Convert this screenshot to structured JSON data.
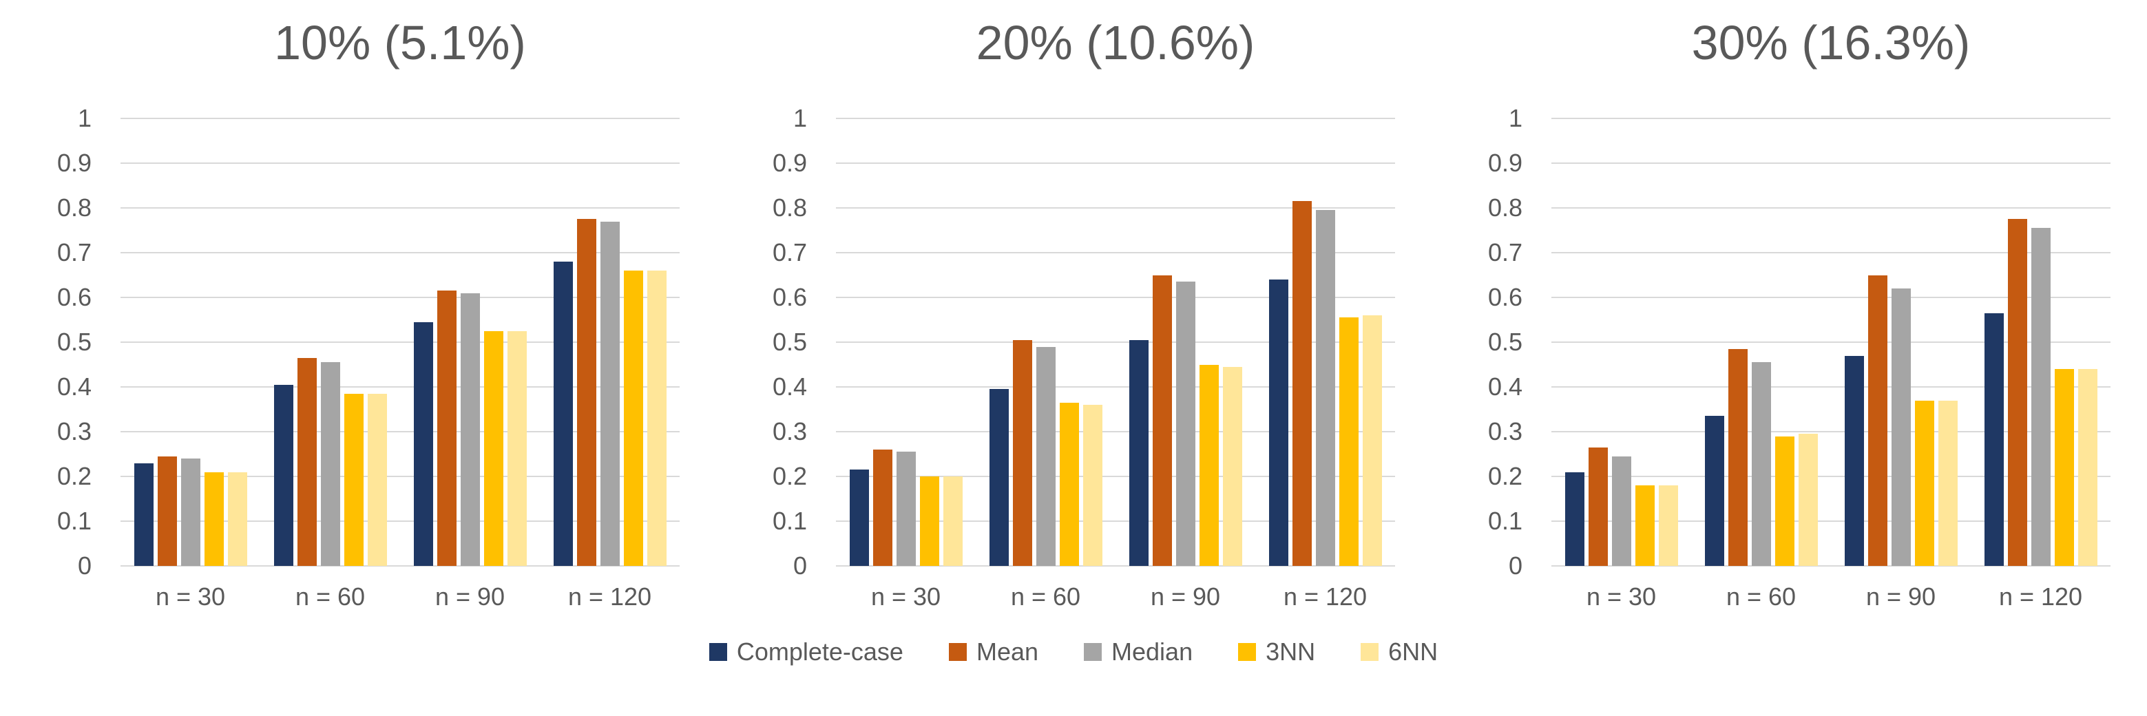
{
  "figure": {
    "background": "#FFFFFF"
  },
  "styles": {
    "grid_color": "#D9D9D9",
    "title_text_color": "#595959",
    "axis_text_color": "#595959"
  },
  "legend": {
    "position": "bottom-center",
    "items": [
      {
        "label": "Complete-case",
        "color": "#1F3864"
      },
      {
        "label": "Mean",
        "color": "#C55A11"
      },
      {
        "label": "Median",
        "color": "#A5A5A5"
      },
      {
        "label": "3NN",
        "color": "#FFC000"
      },
      {
        "label": "6NN",
        "color": "#FFE699"
      }
    ]
  },
  "chart_data": [
    {
      "type": "bar",
      "title": "10% (5.1%)",
      "categories": [
        "n = 30",
        "n = 60",
        "n = 90",
        "n = 120"
      ],
      "ylim": [
        0,
        1
      ],
      "y_ticks": [
        0,
        0.1,
        0.2,
        0.3,
        0.4,
        0.5,
        0.6,
        0.7,
        0.8,
        0.9,
        1
      ],
      "y_tick_labels": [
        "0",
        "0.1",
        "0.2",
        "0.3",
        "0.4",
        "0.5",
        "0.6",
        "0.7",
        "0.8",
        "0.9",
        "1"
      ],
      "grid": true,
      "legend_position": "shared-bottom",
      "series": [
        {
          "name": "Complete-case",
          "color": "#1F3864",
          "values": [
            0.23,
            0.405,
            0.545,
            0.68
          ]
        },
        {
          "name": "Mean",
          "color": "#C55A11",
          "values": [
            0.245,
            0.465,
            0.615,
            0.775
          ]
        },
        {
          "name": "Median",
          "color": "#A5A5A5",
          "values": [
            0.24,
            0.455,
            0.61,
            0.77
          ]
        },
        {
          "name": "3NN",
          "color": "#FFC000",
          "values": [
            0.21,
            0.385,
            0.525,
            0.66
          ]
        },
        {
          "name": "6NN",
          "color": "#FFE699",
          "values": [
            0.21,
            0.385,
            0.525,
            0.66
          ]
        }
      ]
    },
    {
      "type": "bar",
      "title": "20% (10.6%)",
      "categories": [
        "n = 30",
        "n = 60",
        "n = 90",
        "n = 120"
      ],
      "ylim": [
        0,
        1
      ],
      "y_ticks": [
        0,
        0.1,
        0.2,
        0.3,
        0.4,
        0.5,
        0.6,
        0.7,
        0.8,
        0.9,
        1
      ],
      "y_tick_labels": [
        "0",
        "0.1",
        "0.2",
        "0.3",
        "0.4",
        "0.5",
        "0.6",
        "0.7",
        "0.8",
        "0.9",
        "1"
      ],
      "grid": true,
      "legend_position": "shared-bottom",
      "series": [
        {
          "name": "Complete-case",
          "color": "#1F3864",
          "values": [
            0.215,
            0.395,
            0.505,
            0.64
          ]
        },
        {
          "name": "Mean",
          "color": "#C55A11",
          "values": [
            0.26,
            0.505,
            0.65,
            0.815
          ]
        },
        {
          "name": "Median",
          "color": "#A5A5A5",
          "values": [
            0.255,
            0.49,
            0.635,
            0.795
          ]
        },
        {
          "name": "3NN",
          "color": "#FFC000",
          "values": [
            0.2,
            0.365,
            0.45,
            0.555
          ]
        },
        {
          "name": "6NN",
          "color": "#FFE699",
          "values": [
            0.2,
            0.36,
            0.445,
            0.56
          ]
        }
      ]
    },
    {
      "type": "bar",
      "title": "30% (16.3%)",
      "categories": [
        "n = 30",
        "n = 60",
        "n = 90",
        "n = 120"
      ],
      "ylim": [
        0,
        1
      ],
      "y_ticks": [
        0,
        0.1,
        0.2,
        0.3,
        0.4,
        0.5,
        0.6,
        0.7,
        0.8,
        0.9,
        1
      ],
      "y_tick_labels": [
        "0",
        "0.1",
        "0.2",
        "0.3",
        "0.4",
        "0.5",
        "0.6",
        "0.7",
        "0.8",
        "0.9",
        "1"
      ],
      "grid": true,
      "legend_position": "shared-bottom",
      "series": [
        {
          "name": "Complete-case",
          "color": "#1F3864",
          "values": [
            0.21,
            0.335,
            0.47,
            0.565
          ]
        },
        {
          "name": "Mean",
          "color": "#C55A11",
          "values": [
            0.265,
            0.485,
            0.65,
            0.775
          ]
        },
        {
          "name": "Median",
          "color": "#A5A5A5",
          "values": [
            0.245,
            0.455,
            0.62,
            0.755
          ]
        },
        {
          "name": "3NN",
          "color": "#FFC000",
          "values": [
            0.18,
            0.29,
            0.37,
            0.44
          ]
        },
        {
          "name": "6NN",
          "color": "#FFE699",
          "values": [
            0.18,
            0.295,
            0.37,
            0.44
          ]
        }
      ]
    }
  ]
}
